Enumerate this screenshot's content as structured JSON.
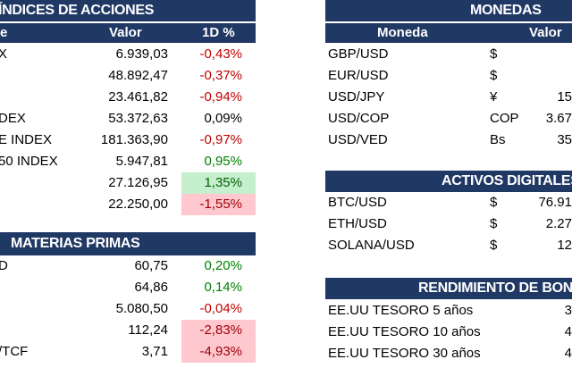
{
  "indices": {
    "title": "ÍNDICES DE ACCIONES",
    "col_name": "e",
    "col_value": "Valor",
    "col_change": "1D %",
    "rows": [
      {
        "name": "X",
        "value": "6.939,03",
        "change": "-0,43%",
        "tone": "neg",
        "hl": ""
      },
      {
        "name": "",
        "value": "48.892,47",
        "change": "-0,37%",
        "tone": "neg",
        "hl": ""
      },
      {
        "name": "",
        "value": "23.461,82",
        "change": "-0,94%",
        "tone": "neg",
        "hl": ""
      },
      {
        "name": "DEX",
        "value": "53.372,63",
        "change": "0,09%",
        "tone": "plain",
        "hl": ""
      },
      {
        "name": "E INDEX",
        "value": "181.363,90",
        "change": "-0,97%",
        "tone": "neg",
        "hl": ""
      },
      {
        "name": "50 INDEX",
        "value": "5.947,81",
        "change": "0,95%",
        "tone": "pos",
        "hl": ""
      },
      {
        "name": "",
        "value": "27.126,95",
        "change": "1,35%",
        "tone": "pos",
        "hl": "green"
      },
      {
        "name": "",
        "value": "22.250,00",
        "change": "-1,55%",
        "tone": "neg",
        "hl": "red"
      }
    ]
  },
  "commodities": {
    "title": "MATERIAS PRIMAS",
    "rows": [
      {
        "name": "D",
        "value": "60,75",
        "change": "0,20%",
        "tone": "pos",
        "hl": ""
      },
      {
        "name": "",
        "value": "64,86",
        "change": "0,14%",
        "tone": "pos",
        "hl": ""
      },
      {
        "name": "",
        "value": "5.080,50",
        "change": "-0,04%",
        "tone": "neg",
        "hl": ""
      },
      {
        "name": "",
        "value": "112,24",
        "change": "-2,83%",
        "tone": "neg",
        "hl": "red"
      },
      {
        "name": "/TCF",
        "value": "3,71",
        "change": "-4,93%",
        "tone": "neg",
        "hl": "red"
      }
    ]
  },
  "currencies": {
    "title": "MONEDAS",
    "col_pair": "Moneda",
    "col_value": "Valor",
    "rows": [
      {
        "pair": "GBP/USD",
        "symbol": "$",
        "value": ""
      },
      {
        "pair": "EUR/USD",
        "symbol": "$",
        "value": ""
      },
      {
        "pair": "USD/JPY",
        "symbol": "¥",
        "value": "15"
      },
      {
        "pair": "USD/COP",
        "symbol": "COP",
        "value": "3.67"
      },
      {
        "pair": "USD/VED",
        "symbol": "Bs",
        "value": "35"
      }
    ]
  },
  "digital": {
    "title": "ACTIVOS DIGITALES",
    "rows": [
      {
        "pair": "BTC/USD",
        "symbol": "$",
        "value": "76.91"
      },
      {
        "pair": "ETH/USD",
        "symbol": "$",
        "value": "2.27"
      },
      {
        "pair": "SOLANA/USD",
        "symbol": "$",
        "value": "12"
      }
    ]
  },
  "bonds": {
    "title": "RENDIMIENTO DE BONO",
    "rows": [
      {
        "name": "EE.UU TESORO 5 años",
        "value": "3"
      },
      {
        "name": "EE.UU TESORO 10 años",
        "value": "4"
      },
      {
        "name": "EE.UU TESORO 30 años",
        "value": "4"
      }
    ]
  },
  "colors": {
    "header_bg": "#203864",
    "negative": "#c00000",
    "positive": "#008000",
    "highlight_green": "#c6efce",
    "highlight_red": "#ffc7ce"
  }
}
